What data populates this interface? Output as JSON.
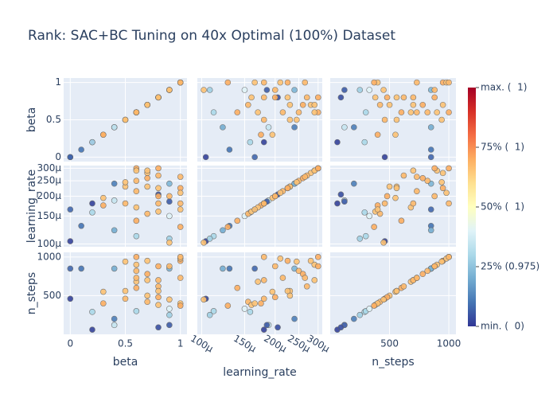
{
  "chart_data": {
    "type": "splom",
    "title": "Rank: SAC+BC Tuning on 40x Optimal (100%) Dataset",
    "dimensions": [
      {
        "label": "beta",
        "lim": [
          -0.06,
          1.06
        ],
        "ticks": [
          0,
          0.5,
          1
        ],
        "values": [
          0,
          0,
          0.1,
          0.2,
          0.2,
          0.4,
          0.4,
          0.4,
          0.6,
          0.9,
          0.9,
          0.9,
          0.8,
          0.9,
          0.3,
          0.3,
          0.5,
          0.5,
          0.6,
          0.6,
          0.6,
          0.6,
          0.6,
          0.6,
          0.7,
          0.7,
          0.7,
          0.7,
          0.7,
          0.8,
          0.8,
          0.8,
          0.8,
          0.8,
          0.8,
          0.9,
          0.9,
          1,
          1,
          1,
          1,
          1,
          1,
          0.5
        ]
      },
      {
        "label": "learning_rate",
        "log": true,
        "lim": [
          9.6e-05,
          0.000312
        ],
        "ticks": [
          {
            "value": 0.0001,
            "label": "100μ"
          },
          {
            "value": 0.00015,
            "label": "150μ"
          },
          {
            "value": 0.0002,
            "label": "200μ"
          },
          {
            "value": 0.00025,
            "label": "250μ"
          },
          {
            "value": 0.0003,
            "label": "300μ"
          }
        ],
        "values": [
          0.000104,
          0.000165,
          0.00013,
          0.00018,
          0.000158,
          0.00024,
          0.000122,
          0.000188,
          0.000112,
          0.000108,
          0.000185,
          0.00024,
          0.000205,
          0.00015,
          0.000195,
          0.000175,
          0.00018,
          0.00023,
          0.0003,
          0.00029,
          0.00025,
          0.00017,
          0.00014,
          0.000215,
          0.00028,
          0.00026,
          0.00023,
          0.000155,
          0.00029,
          0.0003,
          0.00027,
          0.000225,
          0.0002,
          0.00018,
          0.00016,
          0.0002,
          0.000102,
          0.000225,
          0.00021,
          0.00018,
          0.000165,
          0.000128,
          0.000265,
          0.000245
        ]
      },
      {
        "label": "n_steps",
        "lim": [
          0,
          1060
        ],
        "ticks": [
          500,
          1000
        ],
        "values": [
          460,
          850,
          850,
          60,
          290,
          200,
          850,
          120,
          300,
          250,
          120,
          850,
          90,
          330,
          550,
          400,
          460,
          560,
          1000,
          900,
          820,
          680,
          600,
          730,
          950,
          780,
          500,
          420,
          700,
          880,
          620,
          560,
          480,
          700,
          380,
          880,
          450,
          950,
          980,
          1000,
          400,
          370,
          730,
          940
        ]
      }
    ],
    "color_values": [
      0.02,
      0.08,
      0.1,
      0.02,
      0.3,
      0.12,
      0.2,
      0.35,
      0.3,
      0.28,
      0.06,
      0.22,
      0.04,
      0.4,
      0.66,
      0.7,
      0.68,
      0.66,
      0.7,
      0.66,
      0.68,
      0.66,
      0.7,
      0.68,
      0.66,
      0.7,
      0.66,
      0.68,
      0.66,
      0.7,
      0.68,
      0.66,
      0.7,
      0.68,
      0.66,
      0.68,
      0.66,
      0.7,
      0.66,
      0.68,
      0.66,
      0.7,
      0.68,
      0.66
    ],
    "colorlim": [
      0,
      1
    ],
    "colorscale": [
      "#313695",
      "#4575b4",
      "#74add1",
      "#abd9e9",
      "#e0f3f8",
      "#ffffbf",
      "#fee090",
      "#fdae61",
      "#f46d43",
      "#d73027",
      "#a50026"
    ],
    "colorbar_ticks": [
      {
        "value": 1,
        "label": "max. (  1)"
      },
      {
        "value": 0.75,
        "label": "75% (  1)"
      },
      {
        "value": 0.5,
        "label": "50% (  1)"
      },
      {
        "value": 0.25,
        "label": "25% (0.975)"
      },
      {
        "value": 0,
        "label": "min. (  0)"
      }
    ]
  }
}
